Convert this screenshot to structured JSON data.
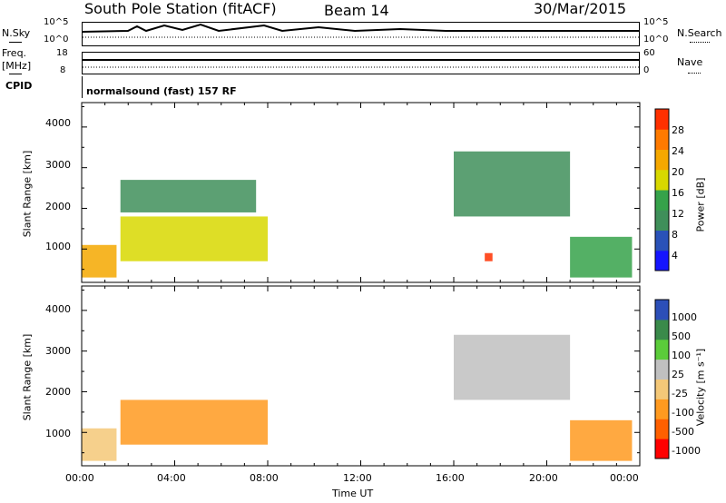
{
  "header": {
    "station": "South Pole Station (fitACF)",
    "beam": "Beam 14",
    "date": "30/Mar/2015"
  },
  "strip": {
    "nsky_label": "N.Sky",
    "nsky_ticks": [
      "10^5",
      "10^0"
    ],
    "nsearch_label": "N.Search",
    "nsearch_ticks": [
      "10^5",
      "10^0"
    ],
    "freq_label": "Freq.",
    "freq_unit": "[MHz]",
    "freq_ticks": [
      "18",
      "8"
    ],
    "nave_label": "Nave",
    "nave_ticks": [
      "60",
      "0"
    ],
    "cpid_label": "CPID",
    "cpid_text": "normalsound (fast) 157 RF"
  },
  "colors": {
    "power": [
      "#1515ff",
      "#2a52b8",
      "#3f8f5a",
      "#36a24a",
      "#d8d800",
      "#f5a800",
      "#ff7a00",
      "#ff3000"
    ],
    "velocity": [
      "#ff0000",
      "#ff6000",
      "#ff9a20",
      "#f4c878",
      "#c0c0c0",
      "#5bcc3a",
      "#3a8a4a",
      "#2c4fb8"
    ]
  },
  "chart_data": [
    {
      "type": "heatmap",
      "ylabel": "Slant Range [km]",
      "yticks": [
        "4000",
        "3000",
        "2000",
        "1000"
      ],
      "ylim": [
        180,
        4600
      ],
      "xlim": [
        "00:00",
        "24:00"
      ],
      "colorbar_label": "Power [dB]",
      "colorbar_ticks": [
        "28",
        "24",
        "20",
        "16",
        "12",
        "8",
        "4"
      ],
      "regions": [
        {
          "start": "00:00",
          "end": "01:30",
          "range_km": [
            300,
            1100
          ],
          "value_db": 22
        },
        {
          "start": "01:40",
          "end": "08:00",
          "range_km": [
            700,
            1800
          ],
          "value_db": 18
        },
        {
          "start": "01:40",
          "end": "07:30",
          "range_km": [
            1900,
            2700
          ],
          "value_db": 8
        },
        {
          "start": "16:00",
          "end": "21:00",
          "range_km": [
            1800,
            3400
          ],
          "value_db": 10
        },
        {
          "start": "17:20",
          "end": "17:40",
          "range_km": [
            700,
            900
          ],
          "value_db": 28
        },
        {
          "start": "21:00",
          "end": "23:40",
          "range_km": [
            300,
            1300
          ],
          "value_db": 12
        }
      ]
    },
    {
      "type": "heatmap",
      "ylabel": "Slant Range [km]",
      "yticks": [
        "4000",
        "3000",
        "2000",
        "1000"
      ],
      "ylim": [
        180,
        4600
      ],
      "xlim": [
        "00:00",
        "24:00"
      ],
      "xticks": [
        "00:00",
        "04:00",
        "08:00",
        "12:00",
        "16:00",
        "20:00",
        "00:00"
      ],
      "xlabel": "Time UT",
      "colorbar_label": "Velocity [m s⁻¹]",
      "colorbar_ticks": [
        "1000",
        "500",
        "100",
        "25",
        "-25",
        "-100",
        "-500",
        "-1000"
      ],
      "regions": [
        {
          "start": "00:00",
          "end": "01:30",
          "range_km": [
            300,
            1100
          ],
          "value": -300
        },
        {
          "start": "01:40",
          "end": "08:00",
          "range_km": [
            700,
            1800
          ],
          "value": -600
        },
        {
          "start": "16:00",
          "end": "21:00",
          "range_km": [
            1800,
            3400
          ],
          "value": 0
        },
        {
          "start": "21:00",
          "end": "23:40",
          "range_km": [
            300,
            1300
          ],
          "value": -500
        }
      ]
    }
  ]
}
